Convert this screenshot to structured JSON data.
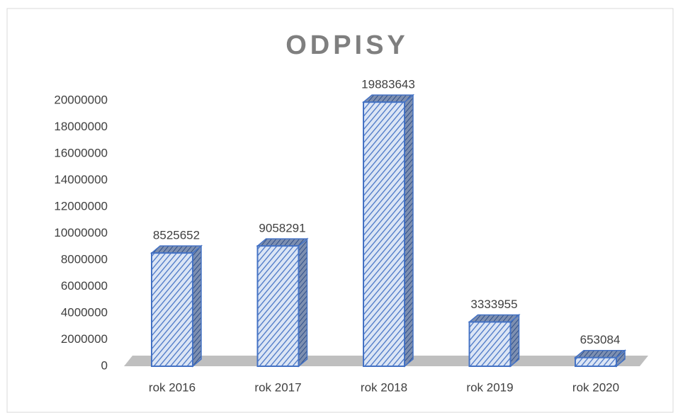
{
  "chart_data": {
    "type": "bar",
    "title": "ODPISY",
    "categories": [
      "rok 2016",
      "rok 2017",
      "rok 2018",
      "rok 2019",
      "rok 2020"
    ],
    "values": [
      8525652,
      9058291,
      19883643,
      3333955,
      653084
    ],
    "color": "#4472c4",
    "ylim": [
      0,
      20000000
    ],
    "yticks": [
      0,
      2000000,
      4000000,
      6000000,
      8000000,
      10000000,
      12000000,
      14000000,
      16000000,
      18000000,
      20000000
    ],
    "grid": false
  }
}
